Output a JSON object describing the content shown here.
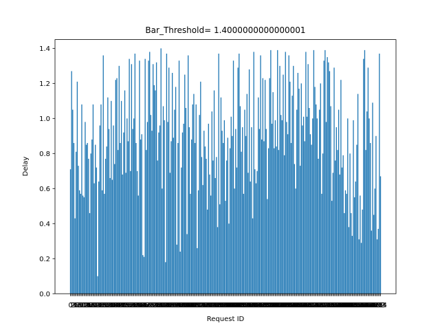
{
  "chart_data": {
    "type": "bar",
    "title": "Bar_Threshold= 1.4000000000000001",
    "xlabel": "Request ID",
    "ylabel": "Delay",
    "ylim": [
      0,
      1.45
    ],
    "yticks": [
      "0.0",
      "0.2",
      "0.4",
      "0.6",
      "0.8",
      "1.0",
      "1.2",
      "1.4"
    ],
    "bar_color": "#1f77b4",
    "grid": false,
    "values": [
      0.71,
      1.27,
      1.05,
      0.86,
      0.43,
      0.81,
      1.21,
      0.73,
      0.59,
      0.57,
      1.08,
      0.56,
      0.55,
      0.98,
      0.85,
      0.86,
      0.77,
      0.46,
      0.8,
      0.88,
      1.08,
      0.63,
      0.85,
      0.72,
      0.1,
      0.64,
      0.96,
      1.08,
      0.59,
      1.36,
      0.57,
      0.77,
      0.84,
      1.12,
      0.94,
      0.66,
      1.1,
      0.65,
      0.96,
      0.74,
      1.22,
      1.23,
      0.82,
      1.3,
      0.86,
      1.1,
      0.68,
      0.92,
      1.16,
      0.69,
      1.0,
      0.87,
      1.34,
      0.7,
      1.31,
      0.94,
      1.0,
      1.37,
      0.86,
      0.7,
      0.56,
      1.33,
      0.88,
      0.91,
      0.22,
      0.21,
      1.34,
      0.82,
      0.98,
      1.33,
      1.38,
      1.02,
      0.93,
      1.31,
      1.19,
      1.16,
      1.32,
      0.76,
      0.92,
      0.96,
      1.4,
      0.6,
      1.07,
      0.99,
      0.18,
      1.37,
      0.98,
      1.29,
      0.69,
      0.87,
      1.26,
      0.89,
      1.05,
      1.18,
      0.28,
      0.86,
      1.33,
      0.24,
      0.72,
      0.92,
      0.97,
      1.25,
      1.06,
      0.34,
      1.36,
      0.95,
      0.57,
      0.88,
      1.08,
      1.14,
      0.86,
      1.08,
      0.26,
      0.59,
      1.02,
      1.21,
      0.78,
      0.62,
      0.93,
      0.84,
      0.77,
      0.48,
      0.97,
      0.68,
      0.56,
      1.04,
      0.76,
      1.16,
      0.66,
      0.78,
      0.38,
      1.37,
      0.51,
      1.12,
      0.93,
      0.86,
      0.99,
      0.53,
      0.76,
      0.89,
      0.4,
      0.83,
      1.01,
      0.9,
      1.33,
      0.6,
      0.94,
      0.72,
      1.29,
      1.37,
      1.07,
      0.81,
      0.95,
      0.57,
      1.05,
      0.9,
      1.14,
      0.69,
      1.28,
      0.64,
      0.95,
      0.43,
      1.38,
      0.71,
      0.63,
      0.7,
      1.12,
      0.94,
      1.36,
      0.88,
      1.23,
      0.87,
      1.22,
      0.94,
      0.54,
      0.83,
      1.23,
      1.39,
      0.97,
      1.15,
      0.83,
      0.99,
      0.84,
      1.39,
      0.82,
      1.3,
      1.02,
      0.99,
      1.25,
      0.79,
      1.38,
      0.98,
      0.91,
      1.36,
      1.21,
      0.86,
      1.13,
      1.3,
      0.74,
      0.6,
      1.05,
      1.26,
      1.17,
      0.73,
      1.2,
      0.96,
      1.01,
      0.87,
      1.38,
      1.01,
      1.31,
      1.06,
      0.91,
      0.85,
      1.0,
      1.39,
      1.18,
      1.08,
      1.0,
      0.77,
      1.05,
      1.2,
      0.57,
      0.8,
      1.33,
      1.39,
      0.98,
      1.35,
      1.32,
      1.27,
      1.07,
      0.53,
      0.69,
      1.29,
      0.76,
      0.95,
      0.82,
      1.05,
      0.68,
      1.22,
      0.72,
      0.79,
      0.46,
      0.59,
      0.57,
      1.0,
      0.38,
      0.8,
      0.46,
      0.33,
      0.99,
      0.55,
      0.64,
      0.85,
      1.14,
      0.31,
      0.56,
      0.29,
      0.48,
      1.34,
      1.39,
      0.82,
      1.04,
      1.29,
      1.0,
      0.86,
      0.36,
      1.09,
      0.45,
      0.6,
      0.9,
      0.31,
      0.37,
      1.37,
      0.67
    ]
  }
}
